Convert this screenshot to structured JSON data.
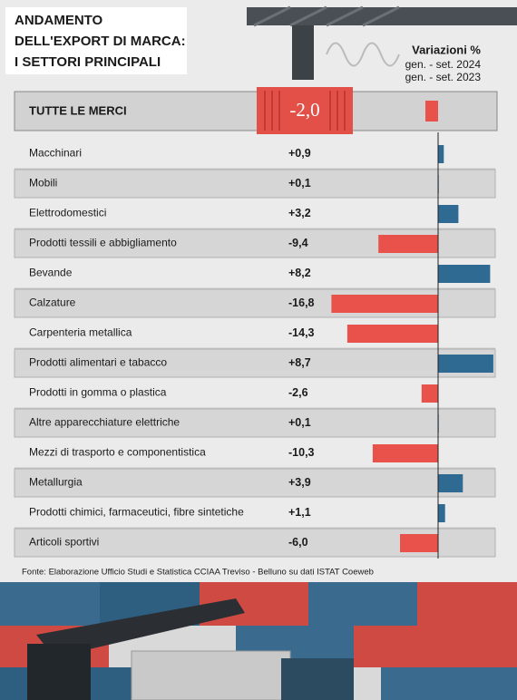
{
  "chart_data": {
    "type": "bar",
    "title_lines": [
      "ANDAMENTO",
      "DELL'EXPORT DI MARCA:",
      "I SETTORI PRINCIPALI"
    ],
    "legend_title": "Variazioni %",
    "period_lines": [
      "gen. - set. 2024",
      "gen. - set. 2023"
    ],
    "total": {
      "label": "TUTTE LE MERCI",
      "value": -2.0,
      "value_label": "-2,0"
    },
    "categories": [
      "Macchinari",
      "Mobili",
      "Elettrodomestici",
      "Prodotti tessili e abbigliamento",
      "Bevande",
      "Calzature",
      "Carpenteria metallica",
      "Prodotti alimentari e tabacco",
      "Prodotti in gomma o plastica",
      "Altre apparecchiature elettriche",
      "Mezzi di trasporto e componentistica",
      "Metallurgia",
      "Prodotti chimici, farmaceutici, fibre sintetiche",
      "Articoli sportivi"
    ],
    "values": [
      0.9,
      0.1,
      3.2,
      -9.4,
      8.2,
      -16.8,
      -14.3,
      8.7,
      -2.6,
      0.1,
      -10.3,
      3.9,
      1.1,
      -6.0
    ],
    "value_labels": [
      "+0,9",
      "+0,1",
      "+3,2",
      "-9,4",
      "+8,2",
      "-16,8",
      "-14,3",
      "+8,7",
      "-2,6",
      "+0,1",
      "-10,3",
      "+3,9",
      "+1,1",
      "-6,0"
    ],
    "xlim": [
      -17.5,
      9
    ],
    "positive_color": "#2f6a93",
    "negative_color": "#e8524a",
    "source": "Fonte: Elaborazione Ufficio Studi e Statistica CCIAA Treviso - Belluno su dati ISTAT Coeweb"
  }
}
